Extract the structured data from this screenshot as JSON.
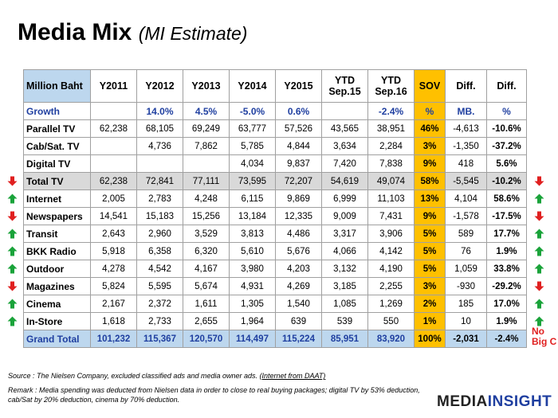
{
  "title": "Media Mix",
  "subtitle": "(MI Estimate)",
  "table": {
    "corner": "Million Baht",
    "headers": [
      {
        "l1": "Y2011",
        "l2": ""
      },
      {
        "l1": "Y2012",
        "l2": ""
      },
      {
        "l1": "Y2013",
        "l2": ""
      },
      {
        "l1": "Y2014",
        "l2": ""
      },
      {
        "l1": "Y2015",
        "l2": ""
      },
      {
        "l1": "YTD",
        "l2": "Sep.15"
      },
      {
        "l1": "YTD",
        "l2": "Sep.16"
      },
      {
        "l1": "SOV",
        "l2": ""
      },
      {
        "l1": "Diff.",
        "l2": ""
      },
      {
        "l1": "Diff.",
        "l2": ""
      }
    ],
    "growth_row": {
      "label": "Growth",
      "cells": [
        "",
        "14.0%",
        "4.5%",
        "-5.0%",
        "0.6%",
        "",
        "-2.4%",
        "%",
        "MB.",
        "%"
      ]
    },
    "rows": [
      {
        "label": "Parallel  TV",
        "cells": [
          "62,238",
          "68,105",
          "69,249",
          "63,777",
          "57,526",
          "43,565",
          "38,951",
          "46%",
          "-4,613",
          "-10.6%"
        ],
        "arrow": "",
        "total": false
      },
      {
        "label": "Cab/Sat. TV",
        "cells": [
          "",
          "4,736",
          "7,862",
          "5,785",
          "4,844",
          "3,634",
          "2,284",
          "3%",
          "-1,350",
          "-37.2%"
        ],
        "arrow": "",
        "total": false
      },
      {
        "label": "Digital TV",
        "cells": [
          "",
          "",
          "",
          "4,034",
          "9,837",
          "7,420",
          "7,838",
          "9%",
          "418",
          "5.6%"
        ],
        "arrow": "",
        "total": false
      },
      {
        "label": "Total TV",
        "cells": [
          "62,238",
          "72,841",
          "77,111",
          "73,595",
          "72,207",
          "54,619",
          "49,074",
          "58%",
          "-5,545",
          "-10.2%"
        ],
        "arrow": "down",
        "total": true
      },
      {
        "label": "Internet",
        "cells": [
          "2,005",
          "2,783",
          "4,248",
          "6,115",
          "9,869",
          "6,999",
          "11,103",
          "13%",
          "4,104",
          "58.6%"
        ],
        "arrow": "up",
        "total": false
      },
      {
        "label": "Newspapers",
        "cells": [
          "14,541",
          "15,183",
          "15,256",
          "13,184",
          "12,335",
          "9,009",
          "7,431",
          "9%",
          "-1,578",
          "-17.5%"
        ],
        "arrow": "down",
        "total": false
      },
      {
        "label": "Transit",
        "cells": [
          "2,643",
          "2,960",
          "3,529",
          "3,813",
          "4,486",
          "3,317",
          "3,906",
          "5%",
          "589",
          "17.7%"
        ],
        "arrow": "up",
        "total": false
      },
      {
        "label": "BKK Radio",
        "cells": [
          "5,918",
          "6,358",
          "6,320",
          "5,610",
          "5,676",
          "4,066",
          "4,142",
          "5%",
          "76",
          "1.9%"
        ],
        "arrow": "up",
        "total": false
      },
      {
        "label": "Outdoor",
        "cells": [
          "4,278",
          "4,542",
          "4,167",
          "3,980",
          "4,203",
          "3,132",
          "4,190",
          "5%",
          "1,059",
          "33.8%"
        ],
        "arrow": "up",
        "total": false
      },
      {
        "label": "Magazines",
        "cells": [
          "5,824",
          "5,595",
          "5,674",
          "4,931",
          "4,269",
          "3,185",
          "2,255",
          "3%",
          "-930",
          "-29.2%"
        ],
        "arrow": "down",
        "total": false
      },
      {
        "label": "Cinema",
        "cells": [
          "2,167",
          "2,372",
          "1,611",
          "1,305",
          "1,540",
          "1,085",
          "1,269",
          "2%",
          "185",
          "17.0%"
        ],
        "arrow": "up",
        "total": false
      },
      {
        "label": "In-Store",
        "cells": [
          "1,618",
          "2,733",
          "2,655",
          "1,964",
          "639",
          "539",
          "550",
          "1%",
          "10",
          "1.9%"
        ],
        "arrow": "up",
        "total": false
      }
    ],
    "grand_total": {
      "label": "Grand Total",
      "cells": [
        "101,232",
        "115,367",
        "120,570",
        "114,497",
        "115,224",
        "85,951",
        "83,920",
        "100%",
        "-2,031",
        "-2.4%"
      ]
    }
  },
  "note_no_big_c": {
    "l1": "No",
    "l2": "Big C"
  },
  "source": {
    "text": "Source :  The Nielsen  Company, excluded  classified  ads  and media owner ads.  ",
    "link": "(Internet from DAAT)"
  },
  "remark": "Remark : Media spending was deducted from Nielsen data in order to close to real buying packages; digital TV by 53% deduction, cab/Sat by 20% deduction, cinema by 70% deduction.",
  "logo": {
    "part1": "MEDIA",
    "part2": "INSIGHT"
  },
  "colors": {
    "up": "#1aa33a",
    "down": "#e02020",
    "sov": "#ffc000",
    "header": "#bdd7ee",
    "accent": "#1f3fa0"
  }
}
